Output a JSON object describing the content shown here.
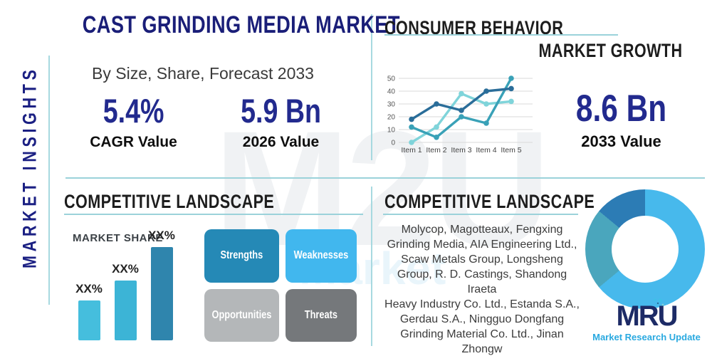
{
  "sidebar": {
    "vertical_label": "MARKET INSIGHTS"
  },
  "header": {
    "title": "CAST GRINDING MEDIA MARKET",
    "subtitle": "By Size, Share, Forecast 2033"
  },
  "stats": {
    "cagr": {
      "value": "5.4%",
      "label": "CAGR Value"
    },
    "base_year": {
      "value": "5.9 Bn",
      "label": "2026 Value"
    },
    "forecast": {
      "value": "8.6 Bn",
      "label": "2033 Value"
    }
  },
  "sections": {
    "consumer_behavior": {
      "title": "CONSUMER BEHAVIOR",
      "subtitle": "MARKET GROWTH"
    },
    "competitive_left": {
      "title": "COMPETITIVE LANDSCAPE",
      "chart_label": "MARKET SHARE"
    },
    "competitive_right": {
      "title": "COMPETITIVE LANDSCAPE",
      "companies_lines": [
        "Molycop, Magotteaux, Fengxing",
        "Grinding Media, AIA Engineering Ltd.,",
        "Scaw Metals Group, Longsheng",
        "Group, R. D. Castings, Shandong Iraeta",
        "Heavy Industry Co. Ltd., Estanda S.A.,",
        "Gerdau S.A., Ningguo Dongfang",
        "Grinding Material Co. Ltd., Jinan",
        "Zhongw"
      ]
    }
  },
  "swot": {
    "strengths": {
      "label": "Strengths",
      "color": "#2589b6"
    },
    "weaknesses": {
      "label": "Weaknesses",
      "color": "#41b7ee"
    },
    "opportunities": {
      "label": "Opportunities",
      "color": "#b4b7b9"
    },
    "threats": {
      "label": "Threats",
      "color": "#75787b"
    }
  },
  "brand": {
    "logo_text": "MRU",
    "logo_tagline": "Market Research Update"
  },
  "colors": {
    "navy": "#1b2083",
    "heading_black": "#1d1d1d",
    "divider_teal": "#9bd2da",
    "body_gray": "#3c3c3c"
  },
  "watermark": {
    "text": "M2U",
    "subtext": "Market"
  },
  "chart_data": [
    {
      "type": "line",
      "title": "MARKET GROWTH",
      "x": [
        "Item 1",
        "Item 2",
        "Item 3",
        "Item 4",
        "Item 5"
      ],
      "series": [
        {
          "name": "series-light-cyan",
          "color": "#7fd4da",
          "values": [
            0,
            12,
            38,
            30,
            32
          ]
        },
        {
          "name": "series-teal",
          "color": "#39a1b7",
          "values": [
            12,
            4,
            20,
            15,
            50
          ]
        },
        {
          "name": "series-dark-blue",
          "color": "#2a6d99",
          "values": [
            18,
            30,
            25,
            40,
            42
          ]
        }
      ],
      "ylim": [
        0,
        50
      ],
      "yticks": [
        0,
        10,
        20,
        30,
        40,
        50
      ],
      "grid": true,
      "legend": "none"
    },
    {
      "type": "bar",
      "title": "MARKET SHARE",
      "categories": [
        "company-1",
        "company-2",
        "company-3"
      ],
      "labels": [
        "XX%",
        "XX%",
        "XX%"
      ],
      "values": [
        56,
        84,
        131
      ],
      "value_unit": "relative-height-px",
      "bar_colors": [
        "#45bedd",
        "#3cb4d6",
        "#2f85ad"
      ],
      "xlabel": "",
      "ylabel": ""
    },
    {
      "type": "pie",
      "subtype": "donut",
      "slices": [
        {
          "name": "segment-light-blue",
          "value": 64,
          "color": "#47b9ec"
        },
        {
          "name": "segment-teal",
          "value": 22,
          "color": "#4aa6bd"
        },
        {
          "name": "segment-dark-blue",
          "value": 14,
          "color": "#2c7cb5"
        }
      ],
      "labels_shown": false
    }
  ]
}
